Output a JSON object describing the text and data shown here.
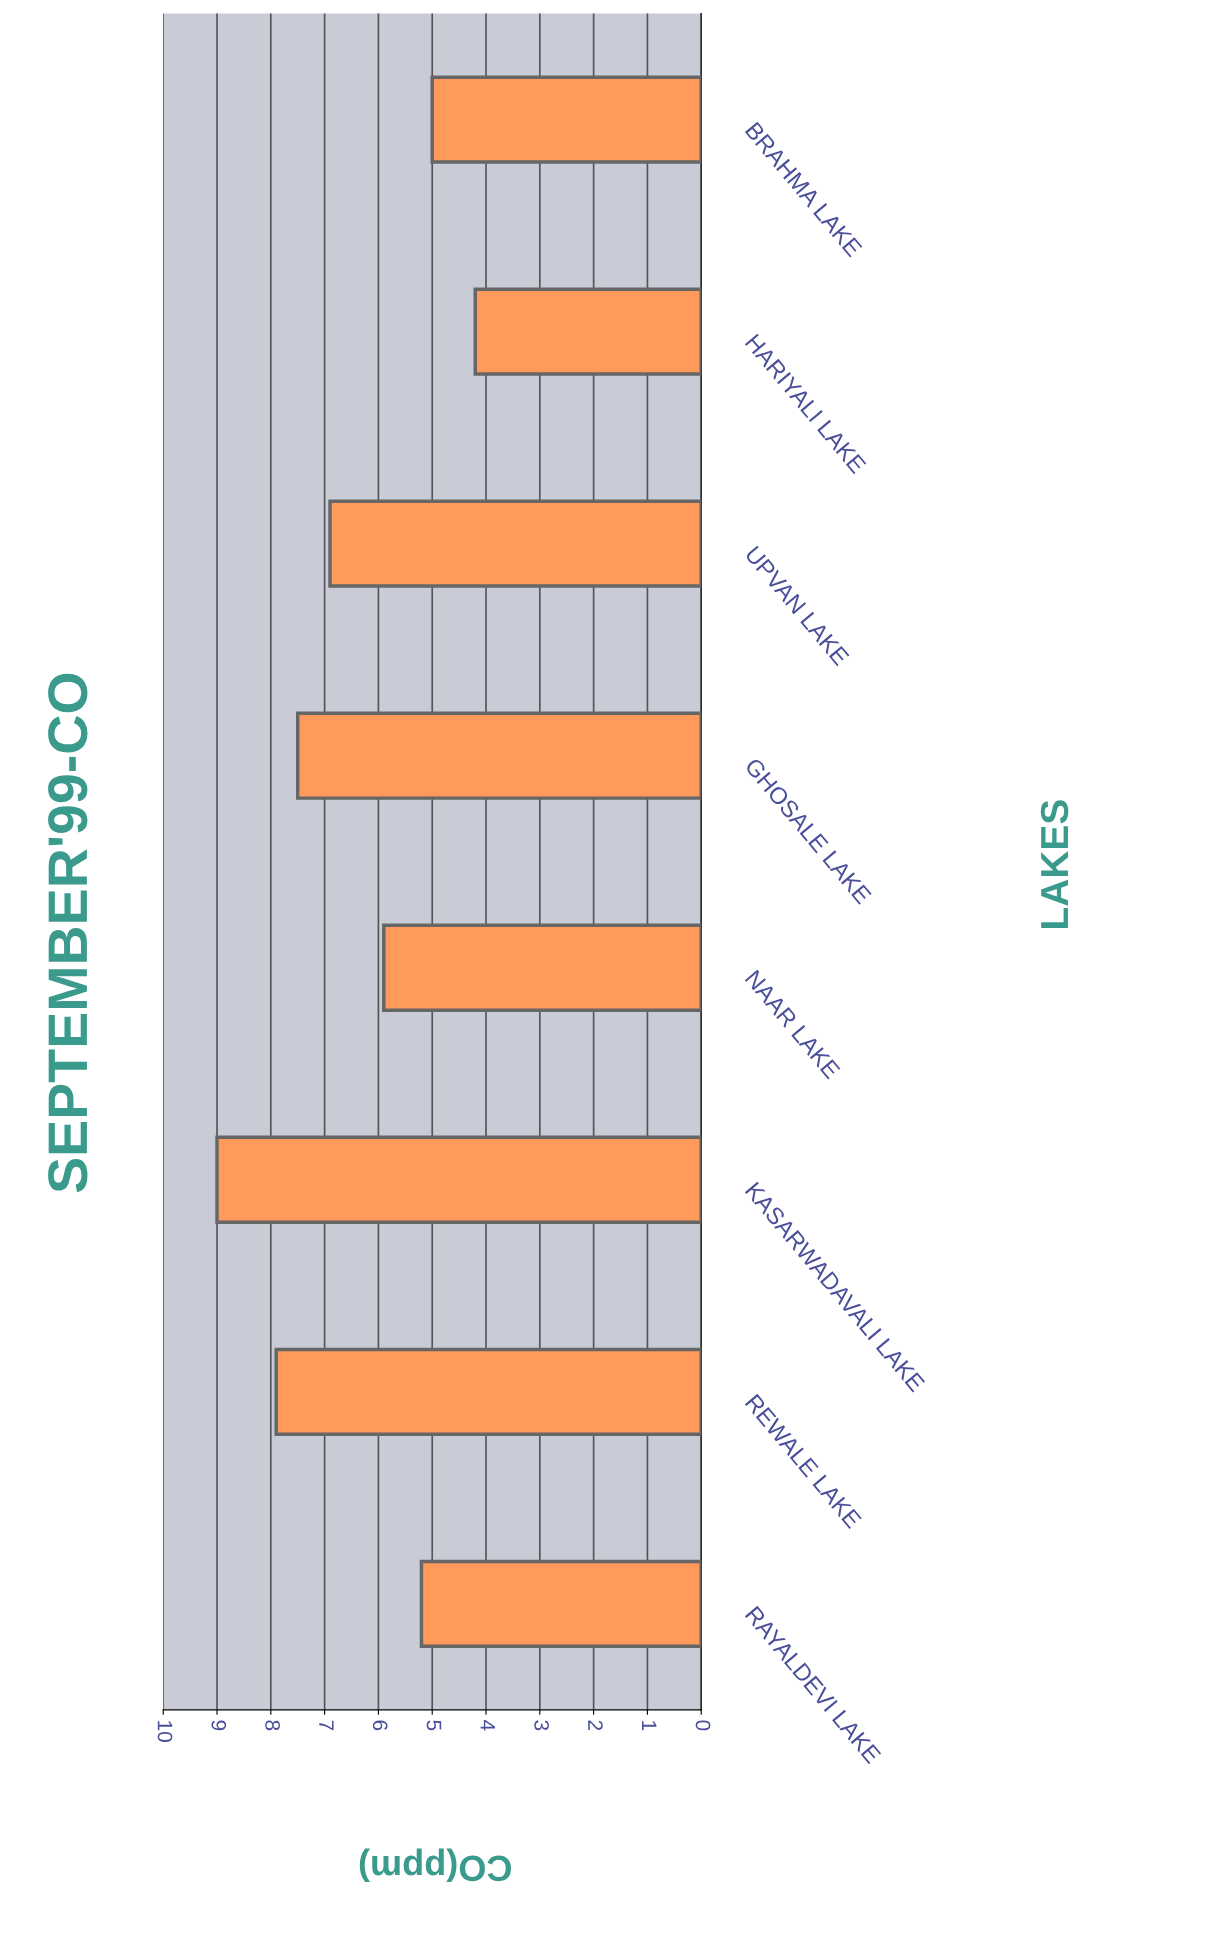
{
  "chart_data": {
    "type": "bar",
    "orientation": "horizontal",
    "title": "SEPTEMBER'99-CO",
    "xlabel": "CO(ppm)",
    "ylabel": "LAKES",
    "categories": [
      "BRAHMA LAKE",
      "HARIYALI LAKE",
      "UPVAN LAKE",
      "GHOSALE LAKE",
      "NAAR LAKE",
      "KASARWADAVALI LAKE",
      "REWALE LAKE",
      "RAYALDEVI LAKE"
    ],
    "values": [
      5.0,
      4.2,
      6.9,
      7.5,
      5.9,
      9.0,
      7.9,
      5.2
    ],
    "color": "#ff9a5c",
    "xlim": [
      10,
      0
    ],
    "xticks": [
      0,
      1,
      2,
      3,
      4,
      5,
      6,
      7,
      8,
      9,
      10
    ],
    "grid": "x"
  }
}
